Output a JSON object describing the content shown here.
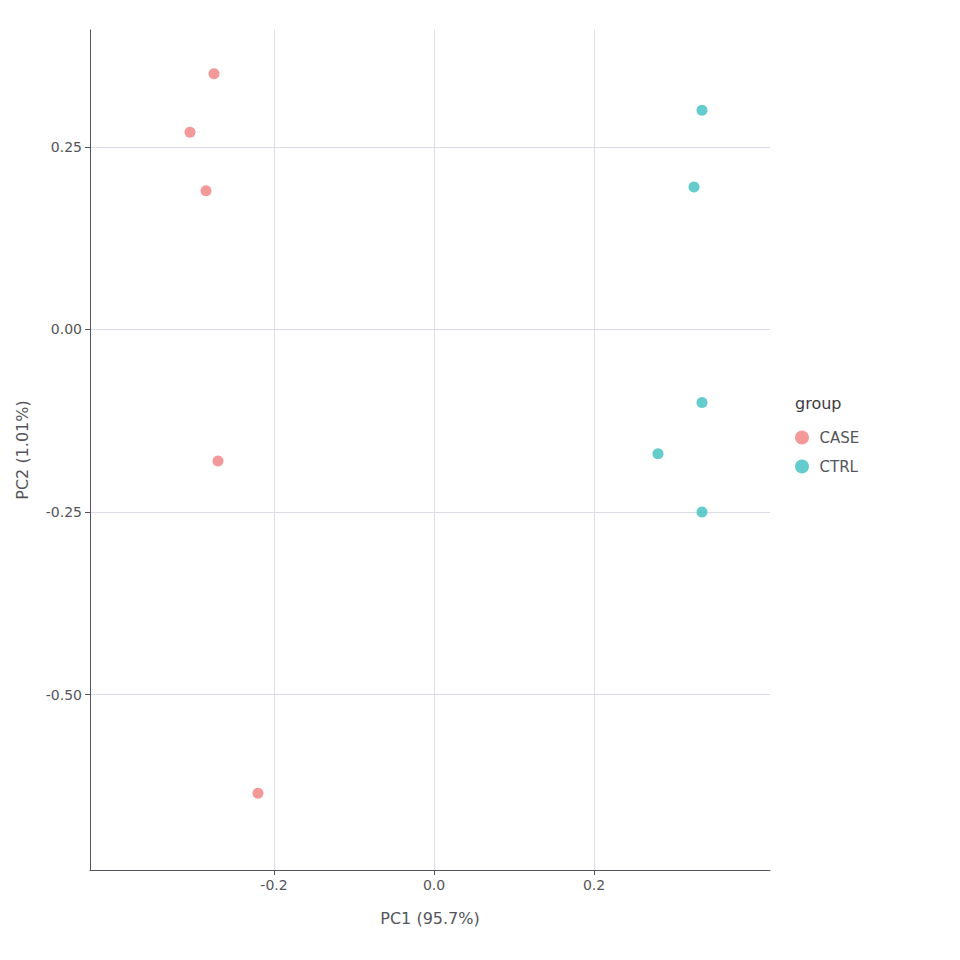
{
  "chart_data": {
    "type": "scatter",
    "xlabel": "PC1 (95.7%)",
    "ylabel": "PC2 (1.01%)",
    "legend_title": "group",
    "series": [
      {
        "name": "CASE",
        "color": "#F08080",
        "x": [
          -0.275,
          -0.305,
          -0.285,
          -0.27,
          -0.22
        ],
        "values": [
          0.35,
          0.27,
          0.19,
          -0.18,
          -0.635
        ]
      },
      {
        "name": "CTRL",
        "color": "#3DBFBF",
        "x": [
          0.335,
          0.325,
          0.335,
          0.28,
          0.335
        ],
        "values": [
          0.3,
          0.195,
          -0.1,
          -0.17,
          -0.25
        ]
      }
    ],
    "xlim": [
      -0.43,
      0.42
    ],
    "xticks": [
      -0.2,
      {
        "value": 0,
        "label": "0.0"
      },
      0.2
    ],
    "ylim": [
      -0.74,
      0.41
    ],
    "yticks": [
      0.25,
      {
        "value": 0,
        "label": "0.00"
      },
      -0.25,
      {
        "value": -0.5,
        "label": "-0.50"
      }
    ],
    "grid": true,
    "legend": "right"
  }
}
